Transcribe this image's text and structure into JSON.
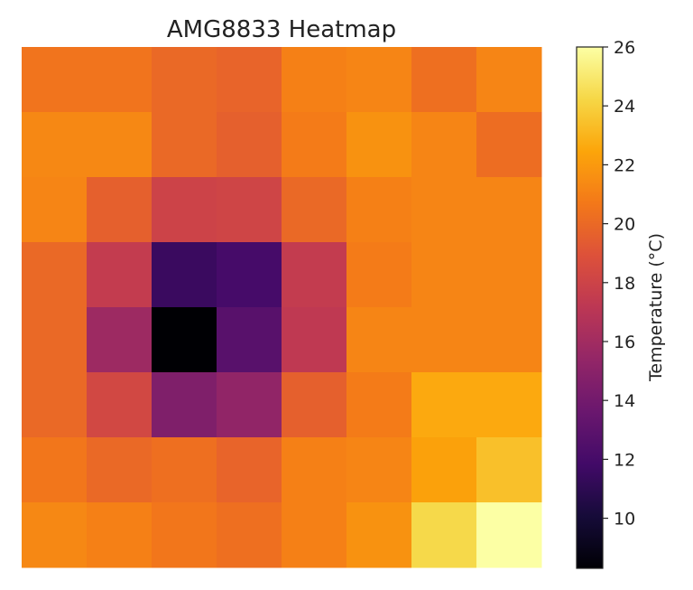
{
  "chart_data": {
    "type": "heatmap",
    "title": "AMG8833 Heatmap",
    "xlabel": "",
    "ylabel": "",
    "axes_visible": false,
    "colormap": "inferno",
    "rows": 8,
    "cols": 8,
    "values": [
      [
        20.5,
        20.5,
        20.0,
        19.8,
        21.0,
        21.2,
        20.3,
        21.2
      ],
      [
        21.3,
        21.3,
        20.0,
        19.6,
        20.8,
        21.7,
        21.2,
        20.2
      ],
      [
        21.2,
        19.6,
        18.0,
        18.1,
        20.0,
        21.0,
        21.2,
        21.2
      ],
      [
        20.0,
        17.5,
        11.5,
        12.0,
        17.5,
        20.8,
        21.2,
        21.2
      ],
      [
        20.0,
        15.8,
        8.3,
        12.8,
        17.3,
        21.2,
        21.2,
        21.2
      ],
      [
        20.0,
        18.3,
        14.5,
        15.3,
        19.6,
        20.8,
        22.6,
        22.6
      ],
      [
        20.6,
        20.0,
        20.3,
        19.8,
        21.0,
        21.2,
        22.3,
        23.4
      ],
      [
        21.3,
        21.0,
        20.6,
        20.3,
        21.0,
        21.7,
        24.3,
        26.0
      ]
    ],
    "colorbar": {
      "label": "Temperature (°C)",
      "range": [
        8.3,
        26.0
      ],
      "ticks": [
        10,
        12,
        14,
        16,
        18,
        20,
        22,
        24,
        26
      ]
    }
  }
}
